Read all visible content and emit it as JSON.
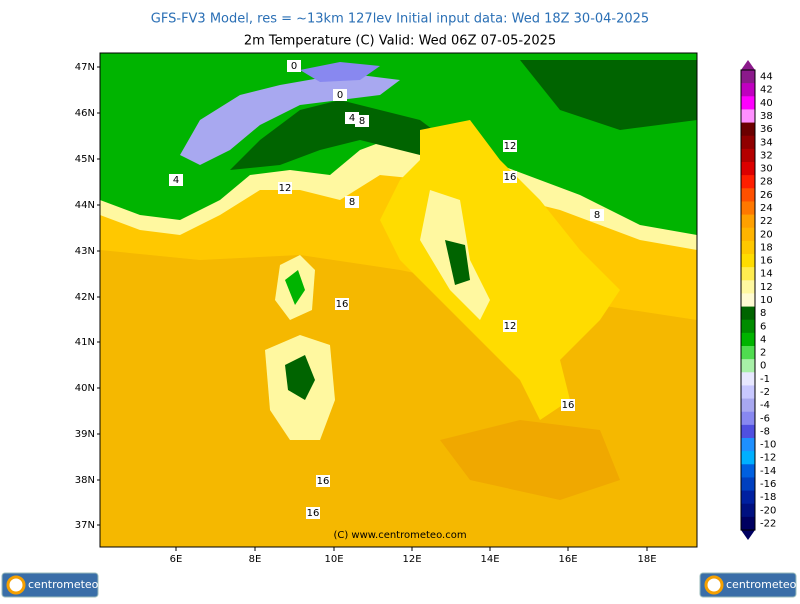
{
  "header": {
    "title": "GFS-FV3 Model, res = ~13km 127lev    Initial input data: Wed 18Z 30-04-2025",
    "subtitle": "2m Temperature (C)  Valid: Wed 06Z 07-05-2025"
  },
  "map": {
    "latitudes": [
      "47N",
      "46N",
      "45N",
      "44N",
      "43N",
      "42N",
      "41N",
      "40N",
      "39N",
      "38N",
      "37N"
    ],
    "longitudes": [
      "6E",
      "8E",
      "10E",
      "12E",
      "14E",
      "16E",
      "18E"
    ],
    "contour_labels": [
      "0",
      "0",
      "4",
      "8",
      "4",
      "12",
      "8",
      "12",
      "16",
      "8",
      "16",
      "12",
      "16",
      "16",
      "16"
    ],
    "copyright": "(C)  www.centrometeo.com"
  },
  "colorbar": {
    "labels": [
      "44",
      "42",
      "40",
      "38",
      "36",
      "34",
      "32",
      "30",
      "28",
      "26",
      "24",
      "22",
      "20",
      "18",
      "16",
      "14",
      "12",
      "10",
      "8",
      "6",
      "4",
      "2",
      "0",
      "-1",
      "-2",
      "-4",
      "-6",
      "-8",
      "-10",
      "-12",
      "-14",
      "-16",
      "-18",
      "-20",
      "-22"
    ],
    "colors": [
      "#8b1a8b",
      "#c000c0",
      "#ff00ff",
      "#ff90ff",
      "#6b0000",
      "#900000",
      "#b40000",
      "#dc0000",
      "#ff1e00",
      "#ff5000",
      "#ff7800",
      "#ffa000",
      "#ffb400",
      "#ffc800",
      "#ffdc00",
      "#ffec50",
      "#fff8a0",
      "#fffbd2",
      "#006400",
      "#008c00",
      "#00b400",
      "#50dc50",
      "#a8f0a8",
      "#e8e8ff",
      "#c8c8ff",
      "#a8a8f0",
      "#8888f0",
      "#5050e0",
      "#1e90ff",
      "#00b0ff",
      "#0060e0",
      "#0040c0",
      "#0020a0",
      "#001080",
      "#000060"
    ]
  },
  "logos": [
    "centrometeo",
    "centrometeo"
  ]
}
